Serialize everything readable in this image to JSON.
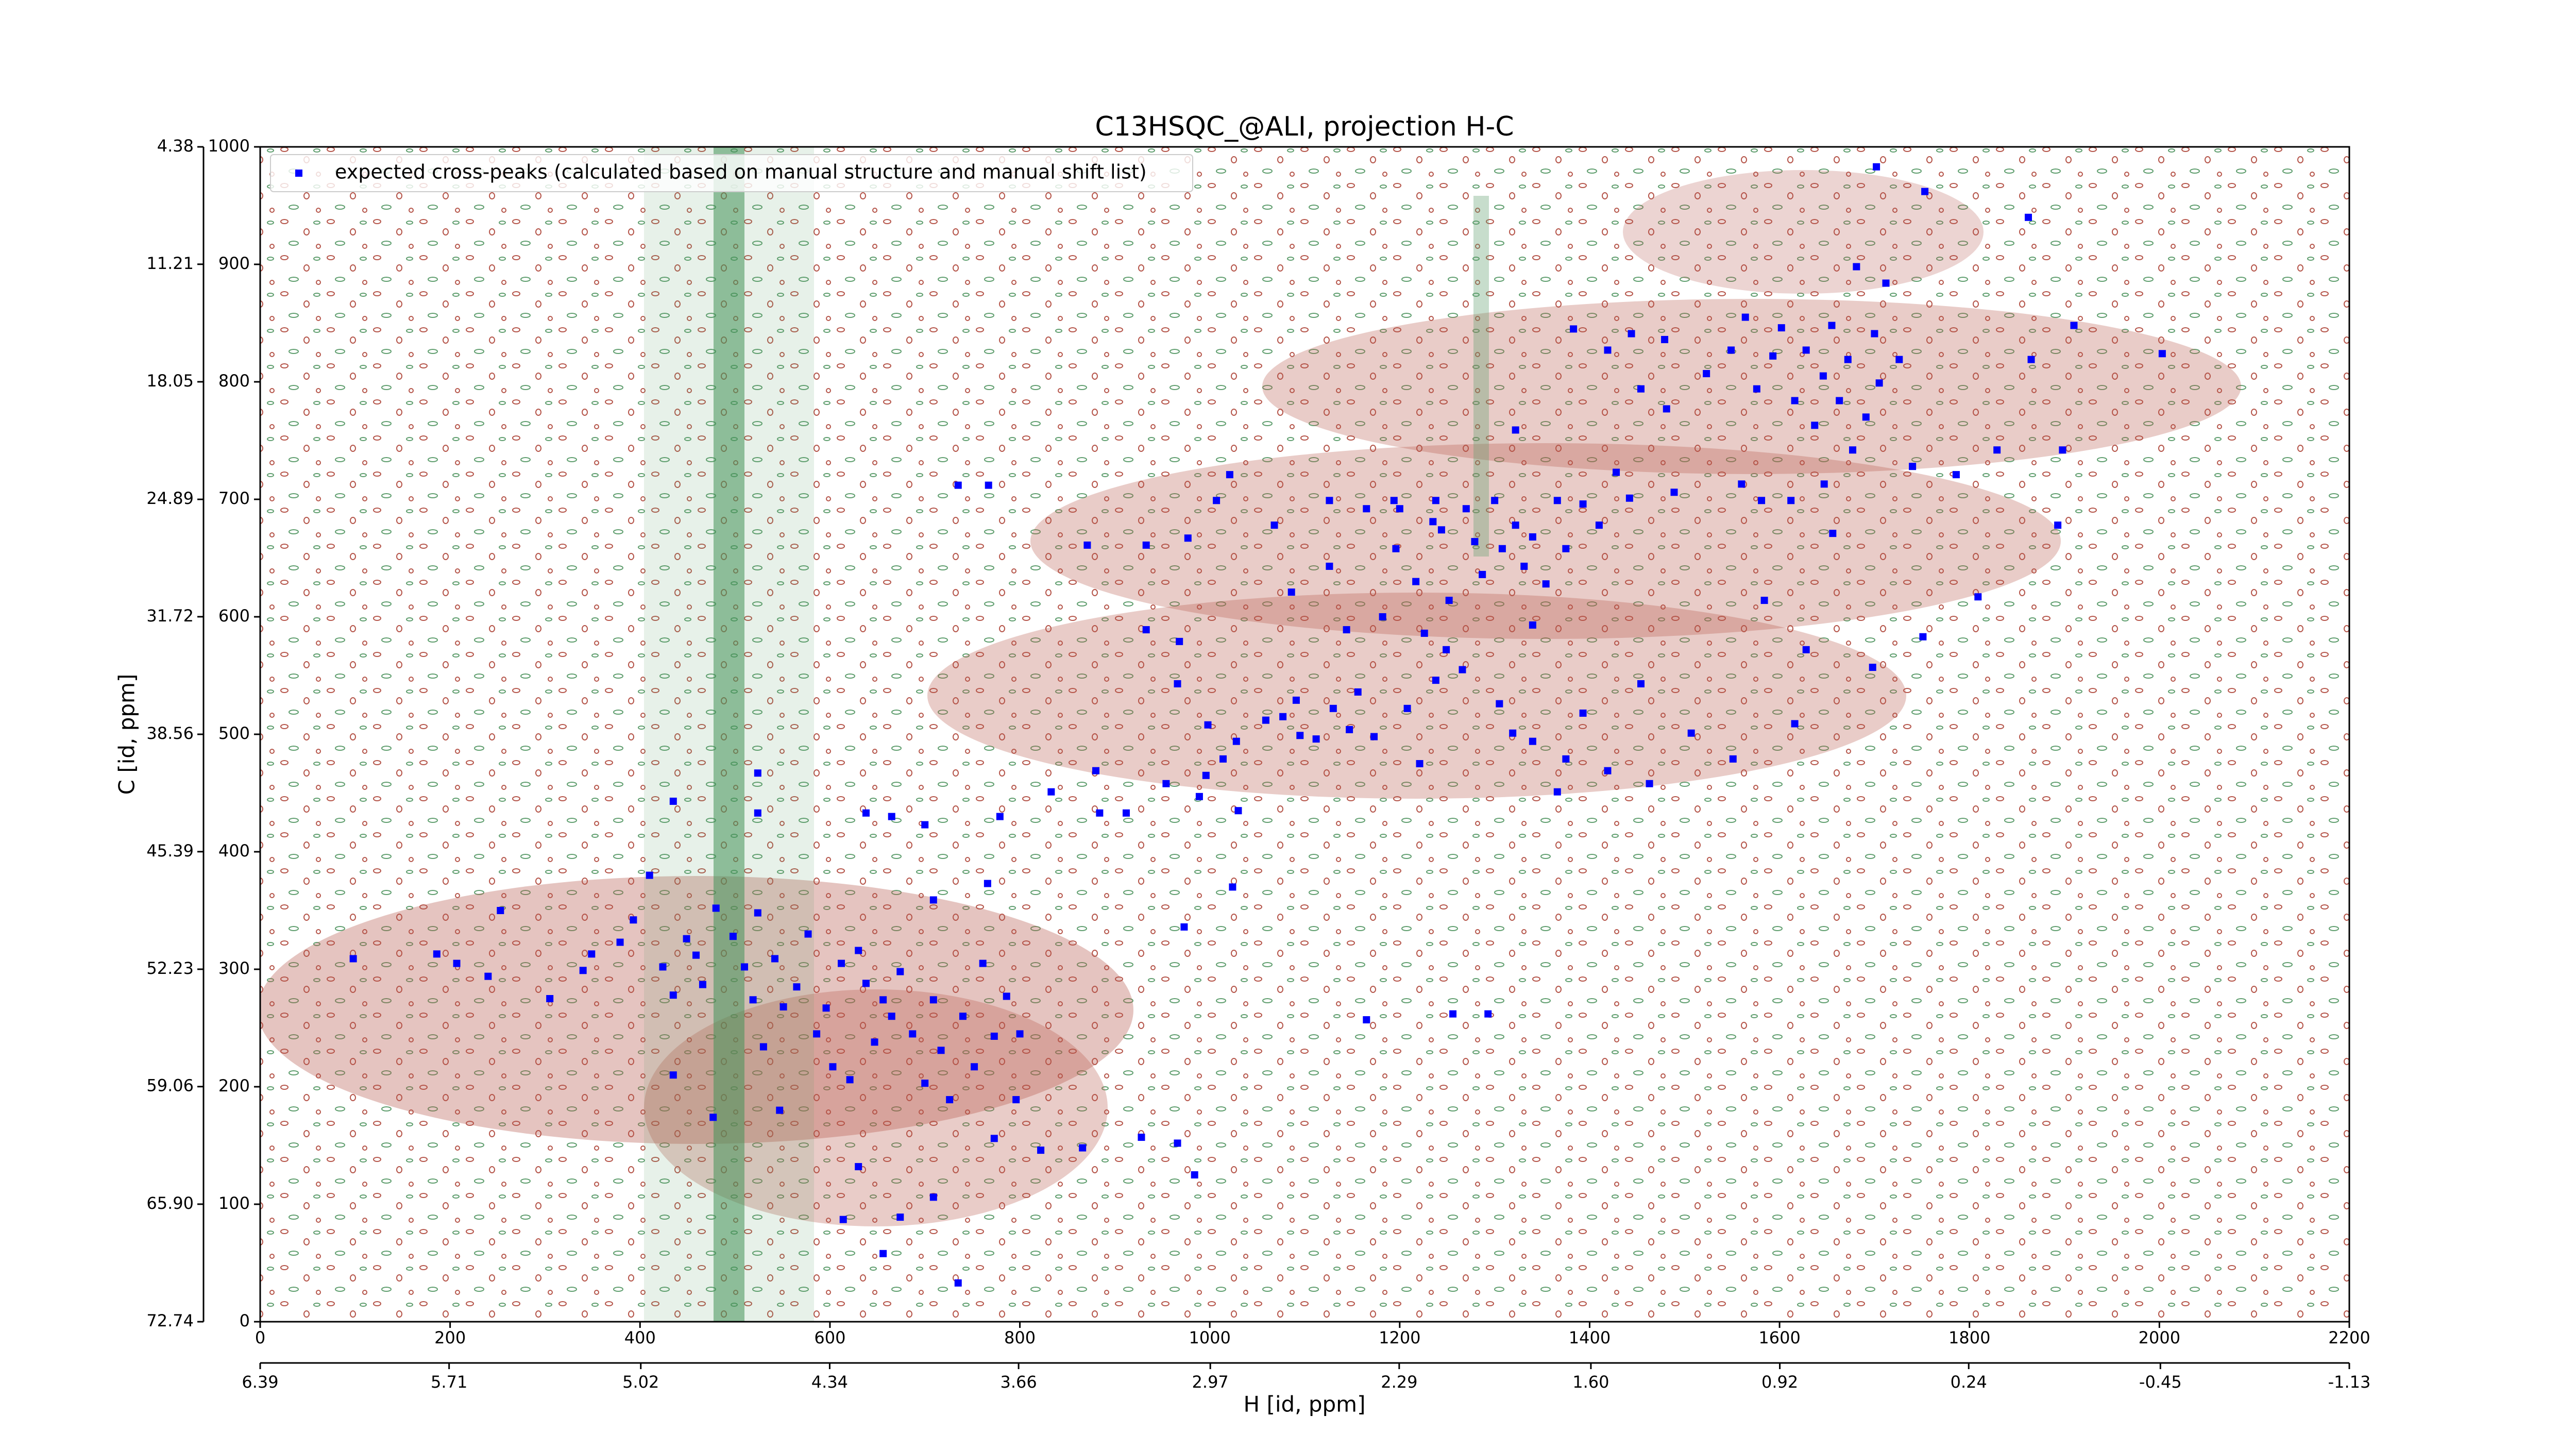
{
  "chart_data": {
    "type": "scatter",
    "title": "C13HSQC_@ALI, projection H-C",
    "x_label": "H [id, ppm]",
    "y_label": "C [id, ppm]",
    "xlim": [
      0,
      2200
    ],
    "xticks": [
      0,
      200,
      400,
      600,
      800,
      1000,
      1200,
      1400,
      1600,
      1800,
      2000,
      2200
    ],
    "ylim": [
      0,
      1000
    ],
    "yticks": [
      0,
      100,
      200,
      300,
      400,
      500,
      600,
      700,
      800,
      900,
      1000
    ],
    "x2lim": [
      6.39,
      -1.13
    ],
    "x2ticks": [
      6.39,
      5.71,
      5.02,
      4.34,
      3.66,
      2.97,
      2.29,
      {
        "value": 1.6,
        "label": "1.60"
      },
      0.92,
      0.24,
      -0.45,
      -1.13
    ],
    "y2lim": [
      72.74,
      4.38
    ],
    "y2ticks": [
      72.74,
      {
        "value": 65.9,
        "label": "65.90"
      },
      59.06,
      52.23,
      45.39,
      38.56,
      31.72,
      24.89,
      18.05,
      11.21,
      4.38
    ],
    "legend": "upper left",
    "x": [
      98,
      186,
      207,
      253,
      240,
      305,
      340,
      349,
      379,
      393,
      410,
      424,
      435,
      449,
      459,
      466,
      480,
      435,
      477,
      498,
      510,
      519,
      524,
      530,
      542,
      551,
      565,
      577,
      586,
      596,
      603,
      612,
      621,
      630,
      638,
      647,
      656,
      665,
      674,
      687,
      700,
      709,
      717,
      726,
      740,
      752,
      761,
      773,
      786,
      800,
      766,
      709,
      547,
      630,
      674,
      709,
      656,
      735,
      614,
      773,
      822,
      866,
      928,
      966,
      984,
      796,
      524,
      524,
      435,
      638,
      665,
      700,
      779,
      833,
      884,
      912,
      880,
      954,
      989,
      1030,
      996,
      1028,
      1059,
      1091,
      1112,
      1130,
      1156,
      1173,
      1208,
      1238,
      1266,
      1305,
      1340,
      1375,
      1419,
      1463,
      1551,
      1616,
      933,
      968,
      966,
      998,
      1014,
      1077,
      1095,
      1147,
      1221,
      1319,
      1366,
      1393,
      1454,
      1507,
      871,
      933,
      977,
      1021,
      1007,
      1068,
      1086,
      1126,
      1126,
      1165,
      1194,
      1182,
      1196,
      1217,
      1238,
      1244,
      1252,
      1270,
      1279,
      1287,
      1300,
      1308,
      1322,
      1331,
      1340,
      1354,
      1366,
      1375,
      1393,
      1410,
      1428,
      1442,
      1489,
      1144,
      1226,
      1249,
      1340,
      1200,
      1235,
      1322,
      1383,
      1419,
      1444,
      1454,
      1479,
      1481,
      1523,
      1549,
      1564,
      1576,
      1593,
      1602,
      1616,
      1628,
      1637,
      1646,
      1655,
      1663,
      1672,
      1681,
      1677,
      1691,
      1700,
      1705,
      1712,
      1726,
      1740,
      1753,
      1702,
      1560,
      1581,
      1612,
      1656,
      1647,
      1786,
      1829,
      1862,
      1865,
      1898,
      1910,
      2003,
      1893,
      1809,
      1751,
      1698,
      1628,
      1584,
      735,
      767,
      1256,
      1293,
      1165,
      973,
      1024
    ],
    "series": [
      {
        "name": "expected cross-peaks (calculated based on manual structure and manual shift list)",
        "color": "#0000ff",
        "values": [
          309,
          313,
          305,
          350,
          294,
          275,
          299,
          313,
          323,
          342,
          380,
          302,
          278,
          326,
          312,
          287,
          352,
          210,
          174,
          328,
          302,
          274,
          348,
          234,
          309,
          268,
          285,
          330,
          245,
          267,
          217,
          305,
          206,
          316,
          288,
          238,
          274,
          260,
          298,
          245,
          203,
          274,
          231,
          189,
          260,
          217,
          305,
          243,
          277,
          245,
          373,
          359,
          180,
          132,
          89,
          106,
          58,
          33,
          87,
          156,
          146,
          148,
          157,
          152,
          125,
          189,
          467,
          433,
          443,
          433,
          430,
          423,
          430,
          451,
          433,
          433,
          469,
          458,
          447,
          435,
          465,
          494,
          512,
          529,
          496,
          522,
          536,
          498,
          522,
          546,
          555,
          526,
          494,
          479,
          469,
          458,
          479,
          509,
          589,
          579,
          543,
          508,
          479,
          515,
          499,
          504,
          475,
          501,
          451,
          518,
          543,
          501,
          661,
          661,
          667,
          721,
          699,
          678,
          621,
          699,
          643,
          692,
          699,
          600,
          658,
          630,
          699,
          674,
          614,
          692,
          664,
          636,
          699,
          658,
          678,
          643,
          668,
          628,
          699,
          658,
          696,
          678,
          723,
          701,
          706,
          589,
          586,
          572,
          593,
          692,
          681,
          759,
          845,
          827,
          841,
          794,
          836,
          777,
          807,
          827,
          855,
          794,
          822,
          846,
          784,
          827,
          763,
          805,
          848,
          784,
          819,
          898,
          742,
          770,
          841,
          799,
          884,
          819,
          728,
          962,
          983,
          713,
          699,
          699,
          671,
          713,
          721,
          742,
          940,
          819,
          742,
          848,
          824,
          678,
          617,
          583,
          557,
          572,
          614,
          712,
          712,
          262,
          262,
          257,
          336,
          370
        ]
      }
    ]
  }
}
